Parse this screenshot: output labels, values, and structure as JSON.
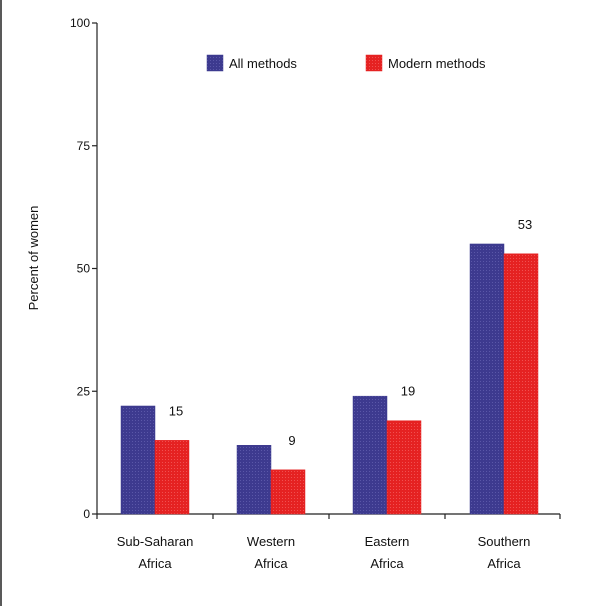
{
  "chart_data": {
    "type": "bar",
    "title": "",
    "xlabel": "",
    "ylabel": "Percent of women",
    "ylim": [
      0,
      100
    ],
    "yticks": [
      0,
      25,
      50,
      75,
      100
    ],
    "grid": false,
    "legend_position": "top-right",
    "categories": [
      [
        "Sub-Saharan",
        "Africa"
      ],
      [
        "Western",
        "Africa"
      ],
      [
        "Eastern",
        "Africa"
      ],
      [
        "Southern",
        "Africa"
      ]
    ],
    "series": [
      {
        "name": "All methods",
        "color": "#3d3a8f",
        "values": [
          22,
          14,
          24,
          55
        ],
        "labels": [
          "",
          "",
          "",
          ""
        ]
      },
      {
        "name": "Modern methods",
        "color": "#e52222",
        "values": [
          15,
          9,
          19,
          53
        ],
        "labels": [
          "15",
          "9",
          "19",
          "53"
        ]
      }
    ]
  }
}
